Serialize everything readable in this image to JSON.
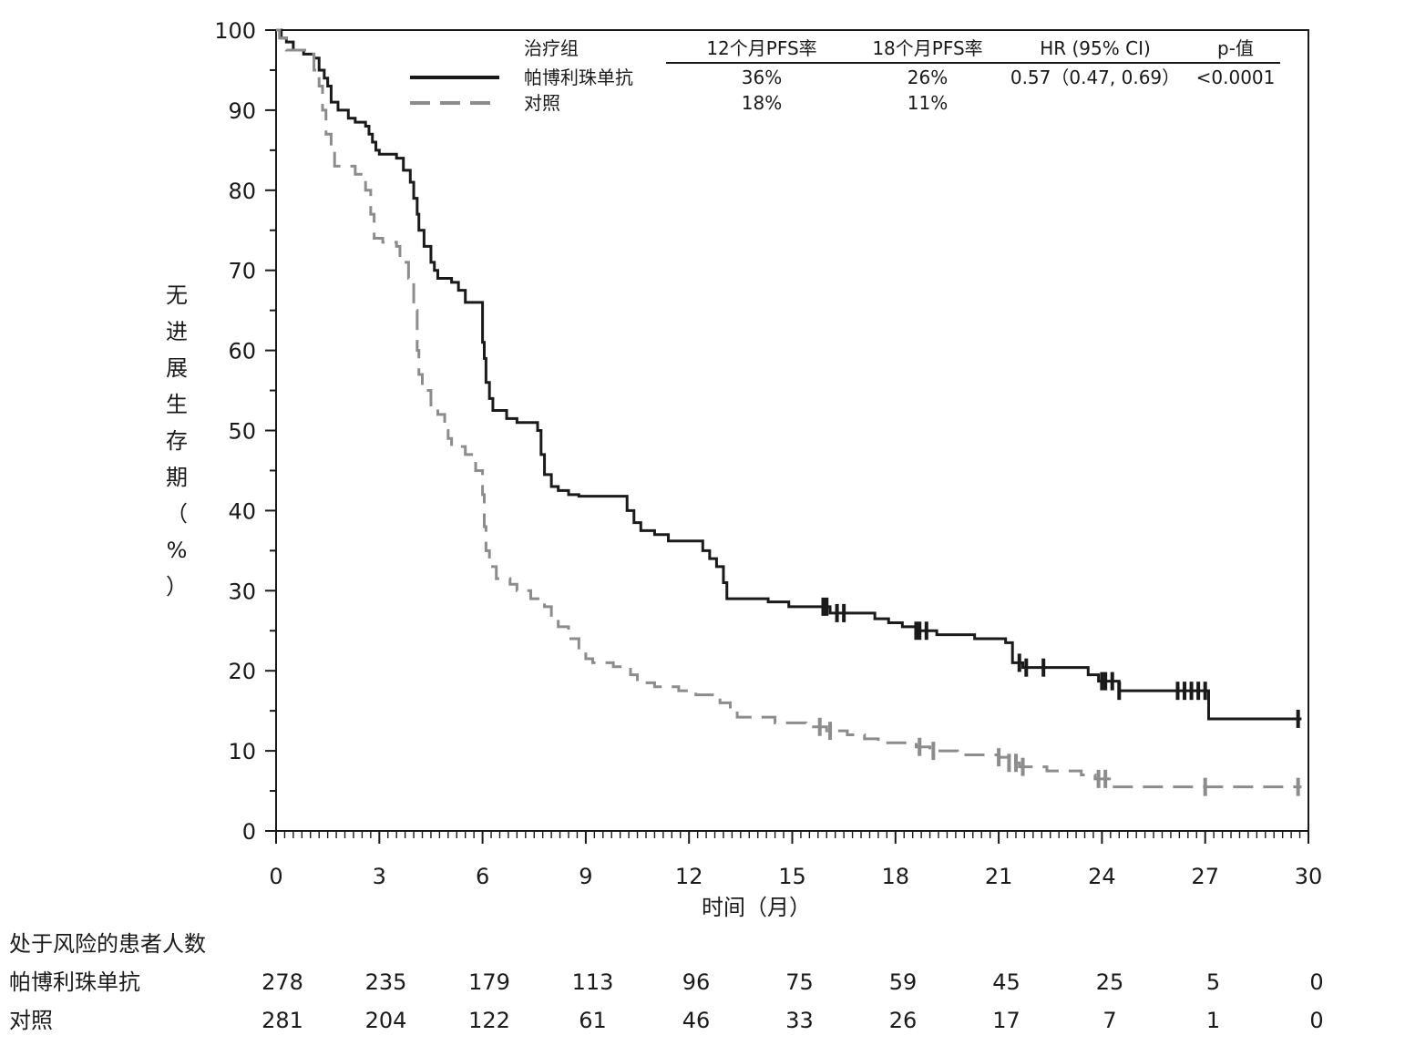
{
  "chart_data": {
    "type": "line",
    "title": "",
    "xlabel": "时间（月）",
    "ylabel": "无进展生存期（%）",
    "xlim": [
      0,
      30
    ],
    "ylim": [
      0,
      100
    ],
    "x_ticks": [
      0,
      3,
      6,
      9,
      12,
      15,
      18,
      21,
      24,
      27,
      30
    ],
    "y_ticks": [
      0,
      10,
      20,
      30,
      40,
      50,
      60,
      70,
      80,
      90,
      100
    ],
    "grid": false,
    "legend": {
      "placement": "top",
      "header": {
        "group": "治疗组",
        "col1": "12个月PFS率",
        "col2": "18个月PFS率",
        "col3": "HR (95% CI)",
        "col4": "p-值"
      },
      "rows": [
        {
          "name": "帕博利珠单抗",
          "col1": "36%",
          "col2": "26%",
          "col3": "0.57（0.47, 0.69）",
          "col4": "<0.0001",
          "color": "#1a1a1a",
          "dash": false
        },
        {
          "name": "对照",
          "col1": "18%",
          "col2": "11%",
          "col3": "",
          "col4": "",
          "color": "#8c8c8c",
          "dash": true
        }
      ]
    },
    "series": [
      {
        "name": "帕博利珠单抗",
        "color": "#1a1a1a",
        "style": "solid",
        "steps": [
          [
            0,
            100
          ],
          [
            0.15,
            99
          ],
          [
            0.3,
            98.5
          ],
          [
            0.5,
            97.5
          ],
          [
            0.8,
            97
          ],
          [
            1.1,
            96.5
          ],
          [
            1.25,
            95
          ],
          [
            1.4,
            94
          ],
          [
            1.5,
            93
          ],
          [
            1.6,
            91
          ],
          [
            1.8,
            90
          ],
          [
            2.1,
            89
          ],
          [
            2.3,
            88.5
          ],
          [
            2.6,
            88
          ],
          [
            2.7,
            87
          ],
          [
            2.8,
            86
          ],
          [
            2.9,
            85
          ],
          [
            3.0,
            84.5
          ],
          [
            3.5,
            84
          ],
          [
            3.7,
            82.5
          ],
          [
            3.9,
            81
          ],
          [
            4.0,
            79
          ],
          [
            4.1,
            77
          ],
          [
            4.15,
            75
          ],
          [
            4.3,
            73
          ],
          [
            4.5,
            71
          ],
          [
            4.6,
            70
          ],
          [
            4.7,
            69
          ],
          [
            5.1,
            68.5
          ],
          [
            5.3,
            67.5
          ],
          [
            5.5,
            66
          ],
          [
            6.0,
            61
          ],
          [
            6.05,
            59
          ],
          [
            6.1,
            56
          ],
          [
            6.2,
            54
          ],
          [
            6.3,
            52.5
          ],
          [
            6.7,
            51.5
          ],
          [
            7.0,
            51
          ],
          [
            7.4,
            51
          ],
          [
            7.6,
            50
          ],
          [
            7.7,
            47
          ],
          [
            7.8,
            44.5
          ],
          [
            8.0,
            43
          ],
          [
            8.2,
            42.5
          ],
          [
            8.5,
            42
          ],
          [
            8.8,
            41.8
          ],
          [
            10.2,
            40
          ],
          [
            10.4,
            38.5
          ],
          [
            10.6,
            37.5
          ],
          [
            11.0,
            37
          ],
          [
            11.4,
            36.2
          ],
          [
            12.4,
            35
          ],
          [
            12.6,
            34
          ],
          [
            12.8,
            33
          ],
          [
            13.0,
            31
          ],
          [
            13.1,
            29
          ],
          [
            14.3,
            28.6
          ],
          [
            14.9,
            28
          ],
          [
            16.1,
            27.2
          ],
          [
            17.4,
            26.5
          ],
          [
            17.8,
            26
          ],
          [
            18.2,
            25.5
          ],
          [
            18.6,
            25
          ],
          [
            19.2,
            24.5
          ],
          [
            20.3,
            24
          ],
          [
            21.2,
            23.5
          ],
          [
            21.4,
            21
          ],
          [
            21.7,
            20.4
          ],
          [
            23.6,
            19.5
          ],
          [
            23.9,
            18.7
          ],
          [
            24.5,
            17.5
          ],
          [
            25.5,
            17.5
          ],
          [
            27.1,
            14
          ],
          [
            29.8,
            14
          ]
        ],
        "censor_x": [
          15.9,
          16.0,
          16.3,
          16.5,
          18.6,
          18.7,
          18.9,
          21.6,
          21.8,
          22.3,
          24.0,
          24.1,
          24.3,
          24.5,
          26.2,
          26.4,
          26.6,
          26.8,
          27.0,
          29.7
        ]
      },
      {
        "name": "对照",
        "color": "#8c8c8c",
        "style": "dashed",
        "steps": [
          [
            0,
            100
          ],
          [
            0.1,
            99
          ],
          [
            0.3,
            97.5
          ],
          [
            0.9,
            97
          ],
          [
            1.1,
            95
          ],
          [
            1.25,
            93
          ],
          [
            1.35,
            90
          ],
          [
            1.45,
            87
          ],
          [
            1.6,
            85
          ],
          [
            1.7,
            83
          ],
          [
            2.3,
            82
          ],
          [
            2.6,
            80
          ],
          [
            2.75,
            77
          ],
          [
            2.85,
            74
          ],
          [
            3.1,
            73.5
          ],
          [
            3.5,
            73
          ],
          [
            3.6,
            71
          ],
          [
            3.85,
            69
          ],
          [
            4.0,
            65
          ],
          [
            4.1,
            60
          ],
          [
            4.15,
            57
          ],
          [
            4.25,
            55
          ],
          [
            4.5,
            53
          ],
          [
            4.7,
            52
          ],
          [
            4.9,
            50
          ],
          [
            5.0,
            49
          ],
          [
            5.1,
            48
          ],
          [
            5.5,
            47
          ],
          [
            5.8,
            45
          ],
          [
            6.0,
            42
          ],
          [
            6.05,
            38
          ],
          [
            6.1,
            35
          ],
          [
            6.2,
            33
          ],
          [
            6.4,
            31.5
          ],
          [
            6.8,
            30.8
          ],
          [
            7.0,
            30
          ],
          [
            7.4,
            29
          ],
          [
            7.8,
            28
          ],
          [
            8.0,
            26.5
          ],
          [
            8.2,
            25.5
          ],
          [
            8.5,
            24
          ],
          [
            8.8,
            22.5
          ],
          [
            9.0,
            21.5
          ],
          [
            9.2,
            21
          ],
          [
            9.8,
            20.5
          ],
          [
            10.3,
            19.5
          ],
          [
            10.5,
            18.5
          ],
          [
            11.0,
            18
          ],
          [
            11.7,
            17.5
          ],
          [
            12.2,
            17
          ],
          [
            12.9,
            16
          ],
          [
            13.2,
            15.2
          ],
          [
            13.4,
            14.2
          ],
          [
            14.5,
            13.5
          ],
          [
            15.4,
            13
          ],
          [
            16.0,
            12.5
          ],
          [
            16.6,
            12
          ],
          [
            17.1,
            11.5
          ],
          [
            17.5,
            11
          ],
          [
            18.6,
            10.5
          ],
          [
            19.0,
            10
          ],
          [
            19.8,
            9.5
          ],
          [
            21.0,
            9.2
          ],
          [
            21.3,
            8.5
          ],
          [
            21.6,
            8
          ],
          [
            22.4,
            7.5
          ],
          [
            23.4,
            7
          ],
          [
            23.8,
            6.5
          ],
          [
            24.3,
            5.5
          ],
          [
            29.8,
            5.5
          ]
        ],
        "censor_x": [
          15.8,
          16.1,
          18.7,
          19.1,
          21.0,
          21.3,
          21.5,
          21.7,
          23.9,
          24.1,
          27.0,
          29.7
        ]
      }
    ],
    "risk_table": {
      "title": "处于风险的患者人数",
      "time_points": [
        0,
        3,
        6,
        9,
        12,
        15,
        18,
        21,
        24,
        27,
        30
      ],
      "rows": [
        {
          "label": "帕博利珠单抗",
          "values": [
            278,
            235,
            179,
            113,
            96,
            75,
            59,
            45,
            25,
            5,
            0
          ]
        },
        {
          "label": "对照",
          "values": [
            281,
            204,
            122,
            61,
            46,
            33,
            26,
            17,
            7,
            1,
            0
          ]
        }
      ]
    }
  }
}
